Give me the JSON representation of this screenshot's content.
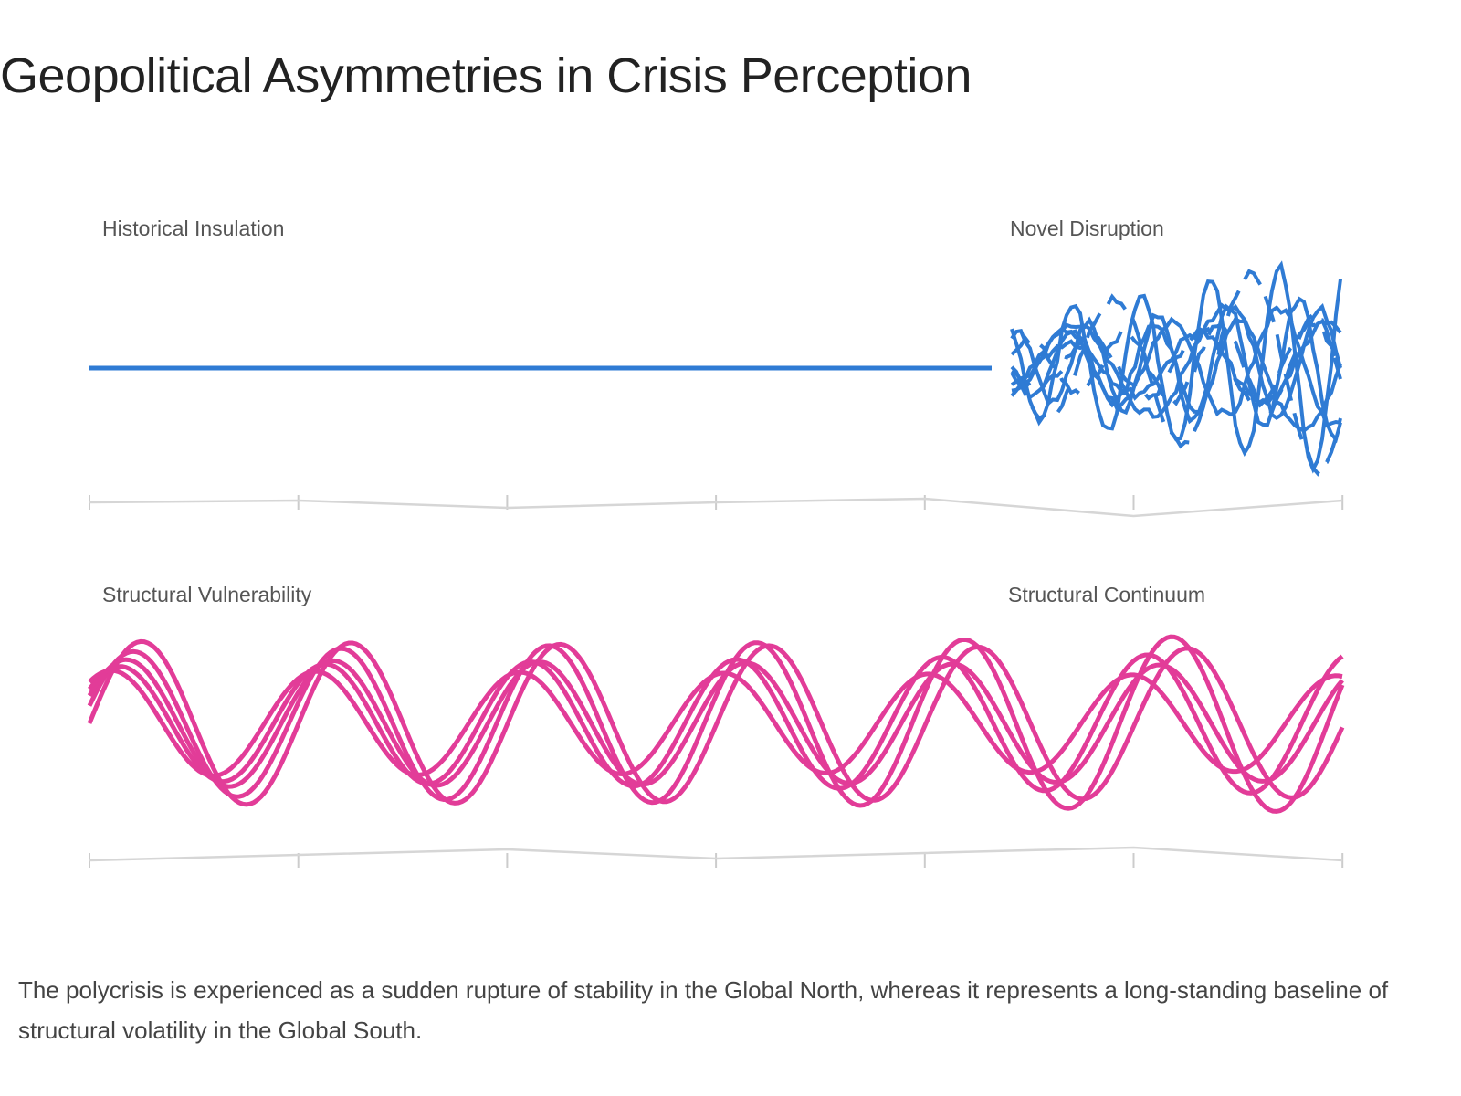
{
  "header": {
    "title": "Geopolitical Asymmetries in Crisis Perception"
  },
  "panels": [
    {
      "left_label": "Historical Insulation",
      "right_label": "Novel Disruption"
    },
    {
      "left_label": "Structural Vulnerability",
      "right_label": "Structural Continuum"
    }
  ],
  "caption": "The polycrisis is experienced as a sudden rupture of stability in the Global North, whereas it represents a long-standing baseline of structural volatility in the Global South."
}
